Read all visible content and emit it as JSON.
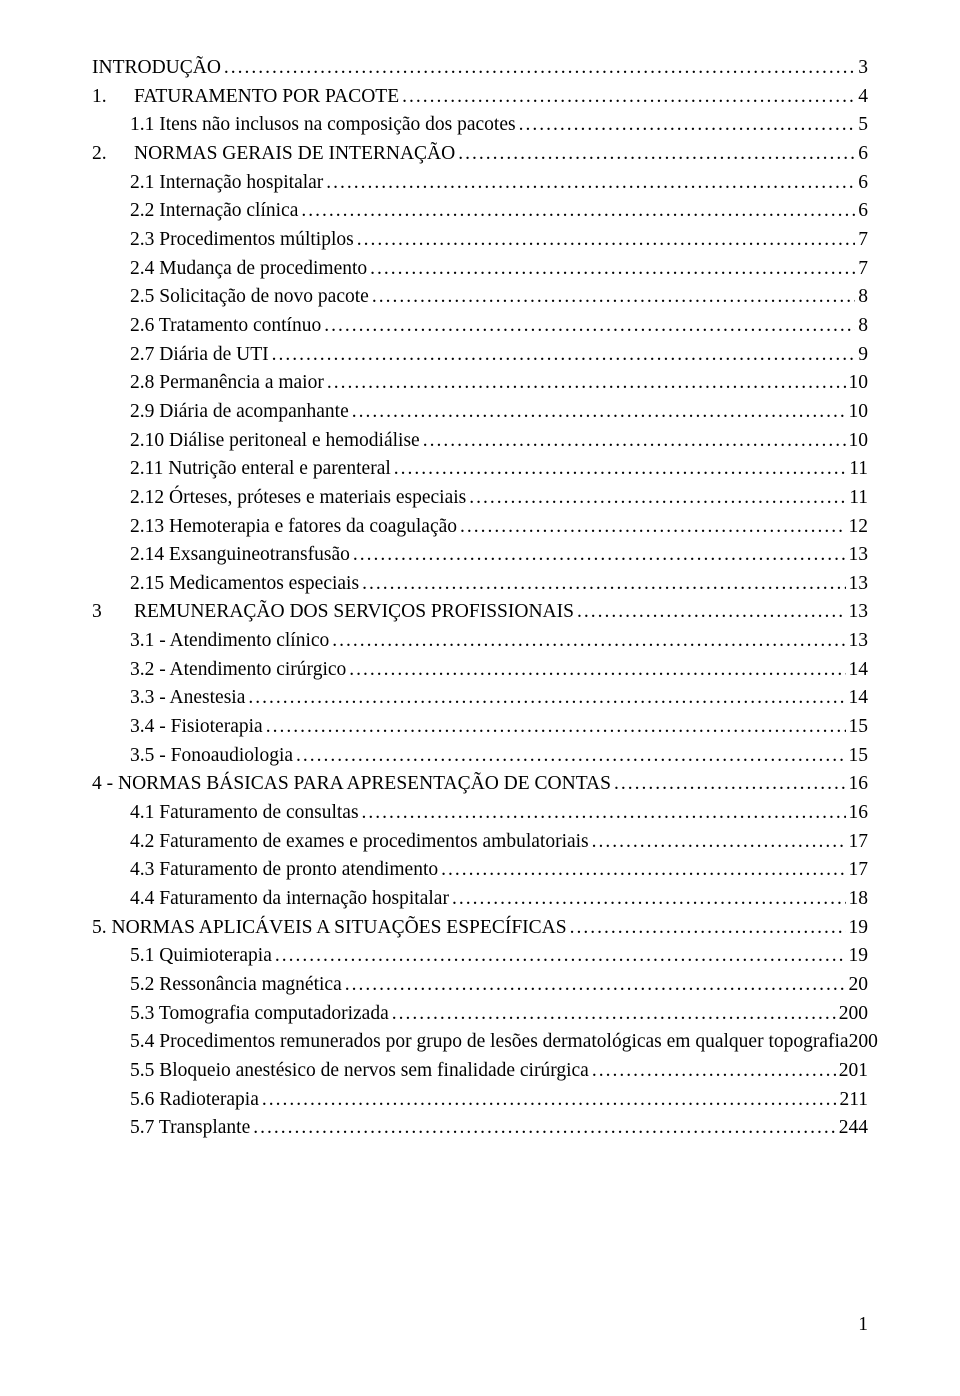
{
  "page_number": "1",
  "colors": {
    "text": "#000000",
    "background": "#ffffff"
  },
  "typography": {
    "font_family": "Times New Roman",
    "font_size_pt": 15
  },
  "toc": [
    {
      "level": 0,
      "label": "INTRODUÇÃO",
      "page": "3"
    },
    {
      "level": 0,
      "prefix": "1.",
      "label": "FATURAMENTO POR PACOTE",
      "page": "4"
    },
    {
      "level": 1,
      "label": "1.1 Itens não inclusos na composição dos pacotes",
      "page": "5"
    },
    {
      "level": 0,
      "prefix": "2.",
      "label": "NORMAS GERAIS DE INTERNAÇÃO",
      "page": "6"
    },
    {
      "level": 1,
      "label": "2.1 Internação hospitalar",
      "page": "6"
    },
    {
      "level": 1,
      "label": "2.2 Internação clínica",
      "page": "6"
    },
    {
      "level": 1,
      "label": "2.3 Procedimentos múltiplos",
      "page": "7"
    },
    {
      "level": 1,
      "label": "2.4 Mudança de procedimento",
      "page": "7"
    },
    {
      "level": 1,
      "label": "2.5 Solicitação de novo pacote",
      "page": "8"
    },
    {
      "level": 1,
      "label": "2.6 Tratamento contínuo",
      "page": "8"
    },
    {
      "level": 1,
      "label": "2.7 Diária de UTI",
      "page": "9"
    },
    {
      "level": 1,
      "label": "2.8 Permanência a maior",
      "page": "10"
    },
    {
      "level": 1,
      "label": "2.9 Diária de acompanhante",
      "page": "10"
    },
    {
      "level": 1,
      "label": "2.10 Diálise peritoneal e hemodiálise",
      "page": "10"
    },
    {
      "level": 1,
      "label": "2.11 Nutrição enteral e parenteral",
      "page": "11"
    },
    {
      "level": 1,
      "label": "2.12 Órteses, próteses e materiais especiais",
      "page": "11"
    },
    {
      "level": 1,
      "label": "2.13 Hemoterapia e fatores da coagulação",
      "page": "12"
    },
    {
      "level": 1,
      "label": "2.14 Exsanguineotransfusão",
      "page": "13"
    },
    {
      "level": 1,
      "label": "2.15 Medicamentos especiais",
      "page": "13"
    },
    {
      "level": 0,
      "prefix": "3",
      "label": "REMUNERAÇÃO DOS SERVIÇOS PROFISSIONAIS",
      "page": "13"
    },
    {
      "level": 1,
      "label": "3.1 - Atendimento clínico",
      "page": "13"
    },
    {
      "level": 1,
      "label": "3.2 - Atendimento cirúrgico",
      "page": "14"
    },
    {
      "level": 1,
      "label": "3.3 - Anestesia",
      "page": "14"
    },
    {
      "level": 1,
      "label": "3.4 - Fisioterapia",
      "page": "15"
    },
    {
      "level": 1,
      "label": "3.5 - Fonoaudiologia",
      "page": "15"
    },
    {
      "level": 0,
      "label": "4 - NORMAS BÁSICAS PARA APRESENTAÇÃO DE CONTAS",
      "page": "16"
    },
    {
      "level": 1,
      "label": "4.1 Faturamento de consultas",
      "page": "16"
    },
    {
      "level": 1,
      "label": "4.2 Faturamento de exames e procedimentos ambulatoriais",
      "page": "17"
    },
    {
      "level": 1,
      "label": "4.3 Faturamento de pronto atendimento",
      "page": "17"
    },
    {
      "level": 1,
      "label": "4.4 Faturamento da internação hospitalar",
      "page": "18"
    },
    {
      "level": 0,
      "label": "5. NORMAS APLICÁVEIS A SITUAÇÕES ESPECÍFICAS",
      "page": "19"
    },
    {
      "level": 1,
      "label": "5.1 Quimioterapia",
      "page": "19"
    },
    {
      "level": 1,
      "label": "5.2 Ressonância magnética",
      "page": "20"
    },
    {
      "level": 1,
      "label": "5.3 Tomografia computadorizada",
      "page": "200"
    },
    {
      "level": 1,
      "label": "5.4 Procedimentos remunerados por grupo de lesões dermatológicas em qualquer topografia",
      "page": "200",
      "no_dots": true
    },
    {
      "level": 1,
      "label": "5.5 Bloqueio anestésico de nervos sem finalidade cirúrgica",
      "page": "201"
    },
    {
      "level": 1,
      "label": "5.6 Radioterapia",
      "page": "211"
    },
    {
      "level": 1,
      "label": "5.7 Transplante",
      "page": "244"
    }
  ]
}
